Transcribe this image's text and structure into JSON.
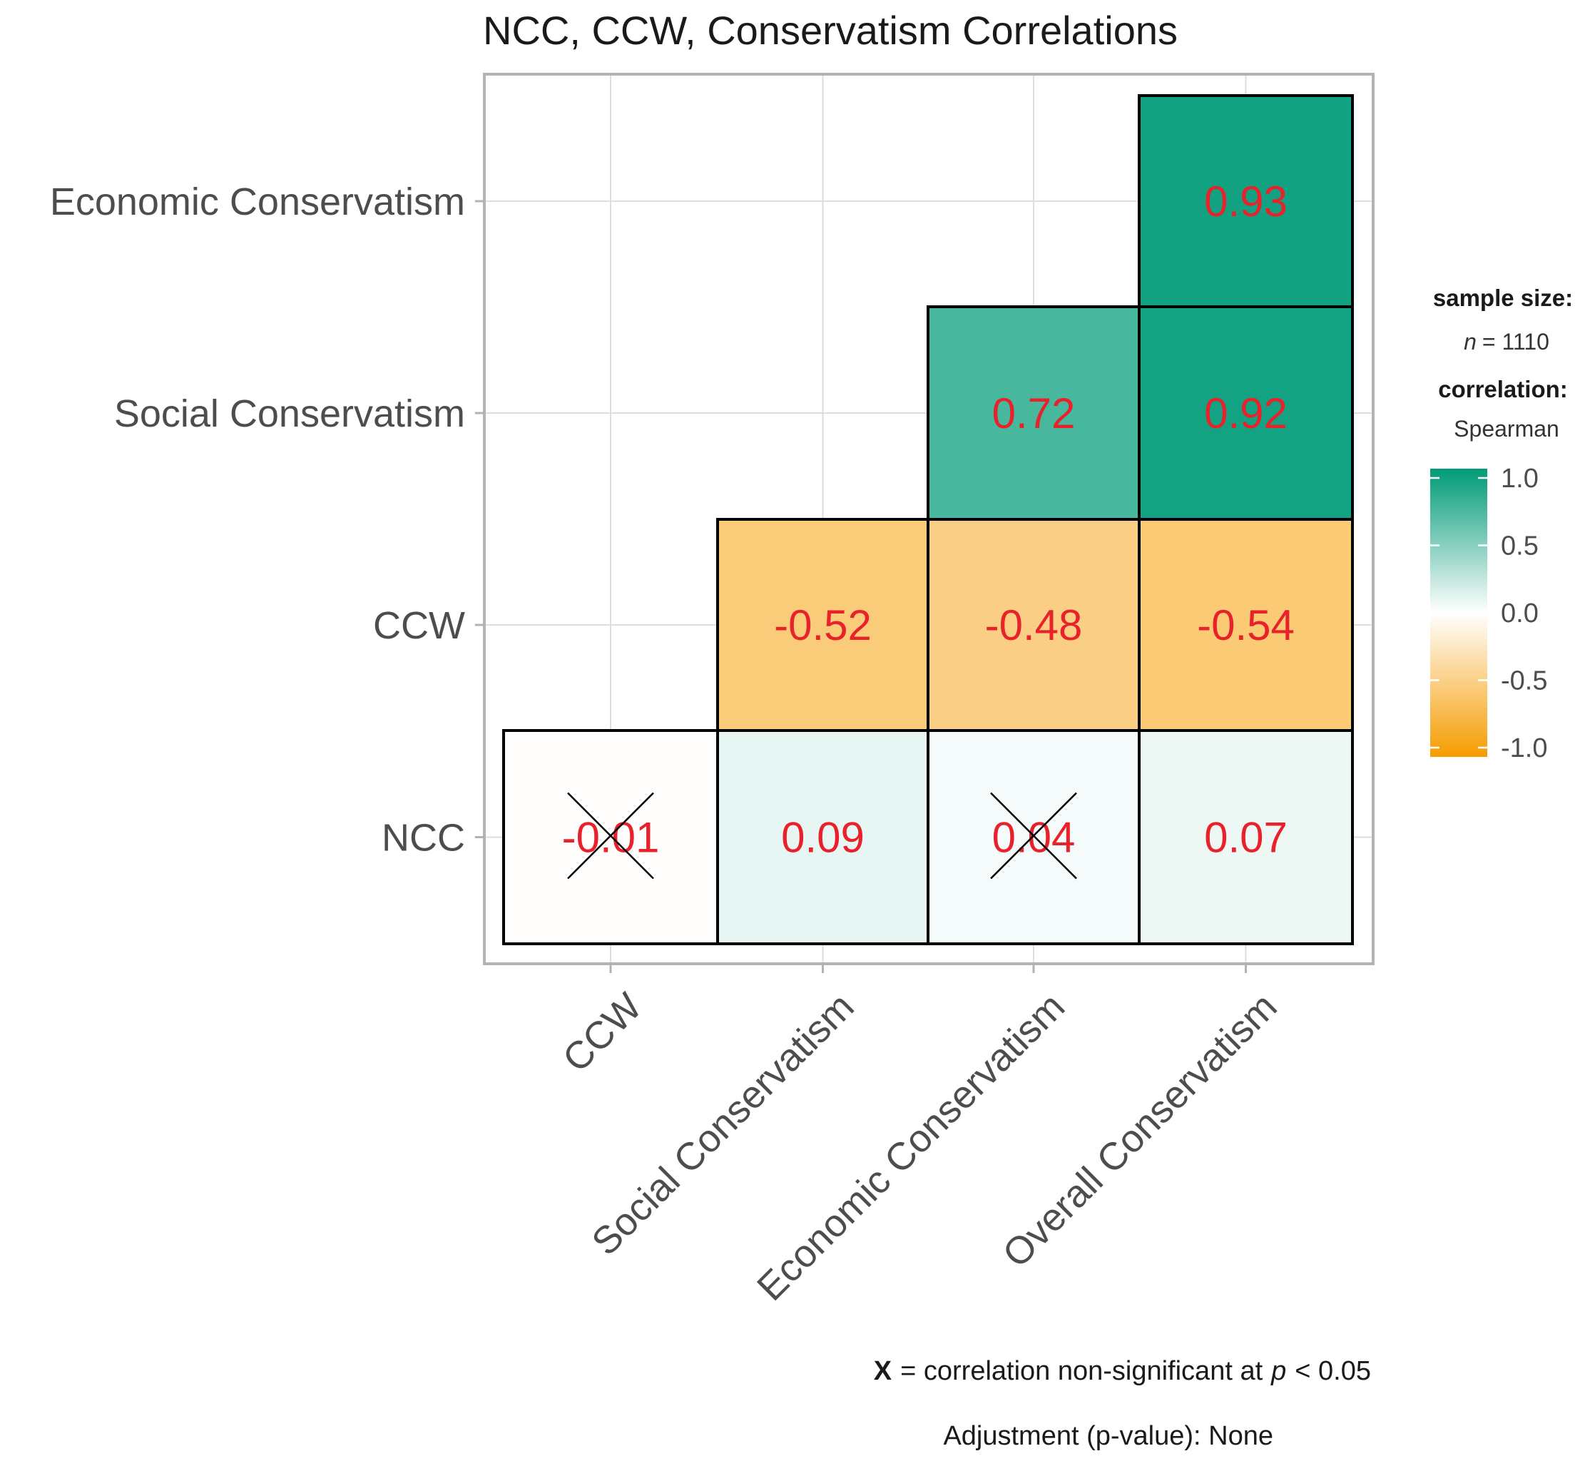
{
  "chart_data": {
    "type": "heatmap",
    "title": "NCC, CCW, Conservatism Correlations",
    "x_categories": [
      "CCW",
      "Social Conservatism",
      "Economic Conservatism",
      "Overall Conservatism"
    ],
    "y_categories": [
      "NCC",
      "CCW",
      "Social Conservatism",
      "Economic Conservatism"
    ],
    "cells": [
      {
        "x": "CCW",
        "y": "NCC",
        "value": -0.01,
        "label": "-0.01",
        "significant": false
      },
      {
        "x": "Social Conservatism",
        "y": "NCC",
        "value": 0.09,
        "label": "0.09",
        "significant": true
      },
      {
        "x": "Economic Conservatism",
        "y": "NCC",
        "value": 0.04,
        "label": "0.04",
        "significant": false
      },
      {
        "x": "Overall Conservatism",
        "y": "NCC",
        "value": 0.07,
        "label": "0.07",
        "significant": true
      },
      {
        "x": "Social Conservatism",
        "y": "CCW",
        "value": -0.52,
        "label": "-0.52",
        "significant": true
      },
      {
        "x": "Economic Conservatism",
        "y": "CCW",
        "value": -0.48,
        "label": "-0.48",
        "significant": true
      },
      {
        "x": "Overall Conservatism",
        "y": "CCW",
        "value": -0.54,
        "label": "-0.54",
        "significant": true
      },
      {
        "x": "Economic Conservatism",
        "y": "Social Conservatism",
        "value": 0.72,
        "label": "0.72",
        "significant": true
      },
      {
        "x": "Overall Conservatism",
        "y": "Social Conservatism",
        "value": 0.92,
        "label": "0.92",
        "significant": true
      },
      {
        "x": "Overall Conservatism",
        "y": "Economic Conservatism",
        "value": 0.93,
        "label": "0.93",
        "significant": true
      }
    ],
    "colorscale": {
      "low_color": "#f59c00",
      "mid_color": "#ffffff",
      "high_color": "#009b77",
      "range": [
        -1.0,
        1.0
      ],
      "ticks": [
        "1.0",
        "0.5",
        "0.0",
        "-0.5",
        "-1.0"
      ],
      "tick_values": [
        1.0,
        0.5,
        0.0,
        -0.5,
        -1.0
      ]
    },
    "legend": {
      "sample_size_heading": "sample size:",
      "sample_size_n": "n",
      "sample_size_value": "= 1110",
      "correlation_heading": "correlation:",
      "correlation_type": "Spearman"
    },
    "caption_line1_mark": "X",
    "caption_line1_text": "= correlation non-significant at",
    "caption_line1_p": "p",
    "caption_line1_threshold": "< 0.05",
    "caption_line2": "Adjustment (p-value): None",
    "grid": true
  }
}
